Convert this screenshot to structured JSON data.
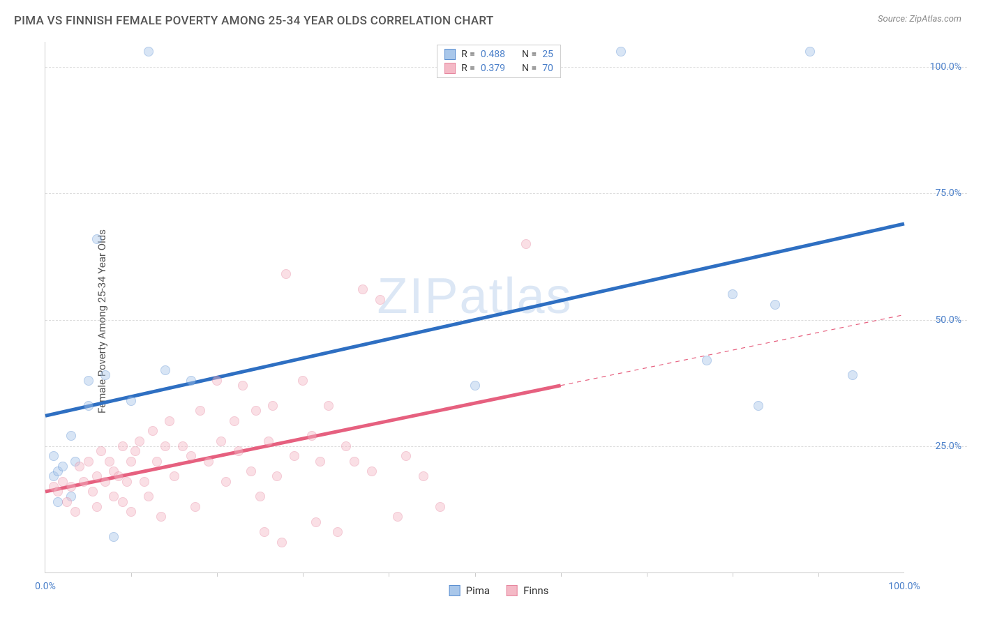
{
  "header": {
    "title": "PIMA VS FINNISH FEMALE POVERTY AMONG 25-34 YEAR OLDS CORRELATION CHART",
    "source_label": "Source: ZipAtlas.com"
  },
  "chart": {
    "type": "scatter",
    "ylabel": "Female Poverty Among 25-34 Year Olds",
    "xlim": [
      0,
      100
    ],
    "ylim": [
      0,
      105
    ],
    "x_ticks_major": [
      0,
      100
    ],
    "x_ticks_minor": [
      10,
      20,
      30,
      40,
      50,
      60,
      70,
      80,
      90
    ],
    "y_ticks": [
      25,
      50,
      75,
      100
    ],
    "y_tick_labels": [
      "25.0%",
      "50.0%",
      "75.0%",
      "100.0%"
    ],
    "x_tick_labels": [
      "0.0%",
      "100.0%"
    ],
    "background_color": "#ffffff",
    "grid_color": "#dddddd",
    "axis_color": "#cccccc",
    "tick_font_color": "#4a7fc9",
    "label_font_color": "#555555",
    "label_fontsize": 15,
    "tick_fontsize": 14,
    "marker_radius": 7,
    "marker_opacity": 0.45,
    "series": [
      {
        "name": "Pima",
        "color_fill": "#a9c7ea",
        "color_stroke": "#5b8fd1",
        "line_color": "#2e6fc2",
        "line_width": 2.5,
        "trend_solid": [
          [
            0,
            31
          ],
          [
            100,
            69
          ]
        ],
        "trend_dashed": null,
        "points": [
          [
            1,
            23
          ],
          [
            1,
            19
          ],
          [
            1.5,
            14
          ],
          [
            1.5,
            20
          ],
          [
            2,
            21
          ],
          [
            3,
            15
          ],
          [
            3,
            27
          ],
          [
            3.5,
            22
          ],
          [
            5,
            38
          ],
          [
            5,
            33
          ],
          [
            6,
            66
          ],
          [
            7,
            39
          ],
          [
            8,
            7
          ],
          [
            10,
            34
          ],
          [
            12,
            103
          ],
          [
            14,
            40
          ],
          [
            17,
            38
          ],
          [
            50,
            37
          ],
          [
            67,
            103
          ],
          [
            77,
            42
          ],
          [
            80,
            55
          ],
          [
            83,
            33
          ],
          [
            85,
            53
          ],
          [
            89,
            103
          ],
          [
            94,
            39
          ]
        ]
      },
      {
        "name": "Finns",
        "color_fill": "#f4b9c6",
        "color_stroke": "#e6879f",
        "line_color": "#e6607f",
        "line_width": 2.5,
        "trend_solid": [
          [
            0,
            16
          ],
          [
            60,
            37
          ]
        ],
        "trend_dashed": [
          [
            60,
            37
          ],
          [
            100,
            51
          ]
        ],
        "points": [
          [
            1,
            17
          ],
          [
            1.5,
            16
          ],
          [
            2,
            18
          ],
          [
            2.5,
            14
          ],
          [
            3,
            17
          ],
          [
            3.5,
            12
          ],
          [
            4,
            21
          ],
          [
            4.5,
            18
          ],
          [
            5,
            22
          ],
          [
            5.5,
            16
          ],
          [
            6,
            19
          ],
          [
            6,
            13
          ],
          [
            6.5,
            24
          ],
          [
            7,
            18
          ],
          [
            7.5,
            22
          ],
          [
            8,
            15
          ],
          [
            8,
            20
          ],
          [
            8.5,
            19
          ],
          [
            9,
            25
          ],
          [
            9,
            14
          ],
          [
            9.5,
            18
          ],
          [
            10,
            22
          ],
          [
            10,
            12
          ],
          [
            10.5,
            24
          ],
          [
            11,
            26
          ],
          [
            11.5,
            18
          ],
          [
            12,
            15
          ],
          [
            12.5,
            28
          ],
          [
            13,
            22
          ],
          [
            13.5,
            11
          ],
          [
            14,
            25
          ],
          [
            14.5,
            30
          ],
          [
            15,
            19
          ],
          [
            16,
            25
          ],
          [
            17,
            23
          ],
          [
            17.5,
            13
          ],
          [
            18,
            32
          ],
          [
            19,
            22
          ],
          [
            20,
            38
          ],
          [
            20.5,
            26
          ],
          [
            21,
            18
          ],
          [
            22,
            30
          ],
          [
            22.5,
            24
          ],
          [
            23,
            37
          ],
          [
            24,
            20
          ],
          [
            24.5,
            32
          ],
          [
            25,
            15
          ],
          [
            25.5,
            8
          ],
          [
            26,
            26
          ],
          [
            26.5,
            33
          ],
          [
            27,
            19
          ],
          [
            27.5,
            6
          ],
          [
            28,
            59
          ],
          [
            29,
            23
          ],
          [
            30,
            38
          ],
          [
            31,
            27
          ],
          [
            31.5,
            10
          ],
          [
            32,
            22
          ],
          [
            33,
            33
          ],
          [
            34,
            8
          ],
          [
            35,
            25
          ],
          [
            36,
            22
          ],
          [
            37,
            56
          ],
          [
            38,
            20
          ],
          [
            39,
            54
          ],
          [
            41,
            11
          ],
          [
            42,
            23
          ],
          [
            44,
            19
          ],
          [
            46,
            13
          ],
          [
            56,
            65
          ]
        ]
      }
    ],
    "legend_top": {
      "rows": [
        {
          "swatch_fill": "#a9c7ea",
          "swatch_stroke": "#5b8fd1",
          "r_label": "R =",
          "r_value": "0.488",
          "n_label": "N =",
          "n_value": "25"
        },
        {
          "swatch_fill": "#f4b9c6",
          "swatch_stroke": "#e6879f",
          "r_label": "R =",
          "r_value": "0.379",
          "n_label": "N =",
          "n_value": "70"
        }
      ]
    },
    "legend_bottom": {
      "items": [
        {
          "swatch_fill": "#a9c7ea",
          "swatch_stroke": "#5b8fd1",
          "label": "Pima"
        },
        {
          "swatch_fill": "#f4b9c6",
          "swatch_stroke": "#e6879f",
          "label": "Finns"
        }
      ]
    },
    "watermark": "ZIPatlas"
  }
}
